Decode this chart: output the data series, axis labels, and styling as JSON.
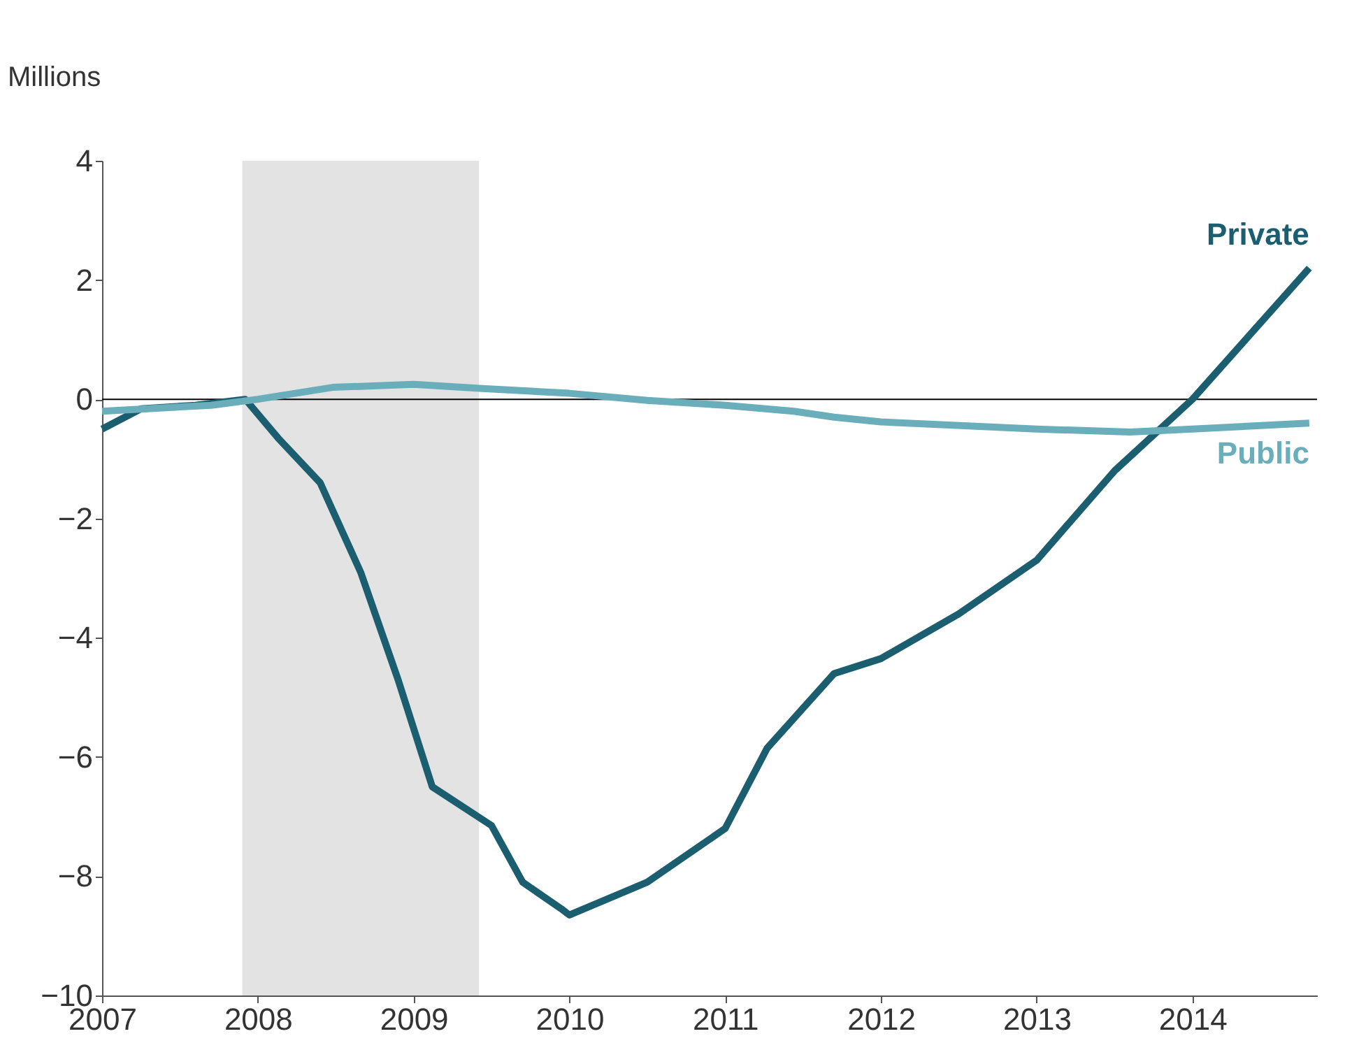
{
  "chart_data": {
    "type": "line",
    "ylabel": "Millions",
    "xlim": [
      2007,
      2014.8
    ],
    "xticks": [
      2007,
      2008,
      2009,
      2010,
      2011,
      2012,
      2013,
      2014
    ],
    "ylim": [
      -10,
      4
    ],
    "yticks": [
      -10,
      -8,
      -6,
      -4,
      -2,
      0,
      2,
      4
    ],
    "grid": false,
    "line_style": "solid",
    "marker": "none",
    "ref_lines": [
      {
        "axis": "y",
        "value": 0,
        "label": null,
        "color": "#000000"
      }
    ],
    "bands": [
      {
        "axis": "x",
        "from": 2007.9,
        "to": 2009.42,
        "label": null,
        "color": "#e3e3e3"
      }
    ],
    "series": [
      {
        "name": "Private",
        "color": "#1b5e70",
        "x": [
          2007,
          2007.25,
          2007.6,
          2007.92,
          2008.13,
          2008.4,
          2008.66,
          2008.9,
          2009.12,
          2009.5,
          2009.7,
          2009.95,
          2010,
          2010.5,
          2011,
          2011.27,
          2011.7,
          2012,
          2012.5,
          2013,
          2013.5,
          2014,
          2014.75
        ],
        "values": [
          -0.5,
          -0.16,
          -0.1,
          0,
          -0.65,
          -1.4,
          -2.9,
          -4.7,
          -6.5,
          -7.15,
          -8.1,
          -8.55,
          -8.65,
          -8.1,
          -7.2,
          -5.85,
          -4.6,
          -4.35,
          -3.6,
          -2.7,
          -1.2,
          0,
          2.2
        ]
      },
      {
        "name": "Public",
        "color": "#6aaebb",
        "x": [
          2007,
          2007.7,
          2008,
          2008.48,
          2009,
          2009.44,
          2010,
          2010.5,
          2011,
          2011.44,
          2011.7,
          2012,
          2013,
          2013.6,
          2014,
          2014.75
        ],
        "values": [
          -0.2,
          -0.1,
          0,
          0.2,
          0.25,
          0.18,
          0.1,
          -0.02,
          -0.1,
          -0.2,
          -0.3,
          -0.38,
          -0.5,
          -0.55,
          -0.5,
          -0.4
        ]
      }
    ]
  }
}
